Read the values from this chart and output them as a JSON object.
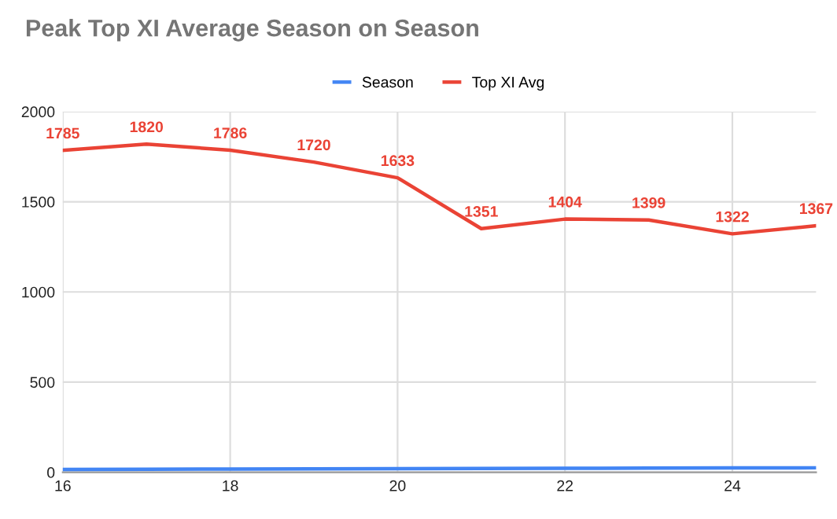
{
  "chart_data": {
    "type": "line",
    "title": "Peak Top XI Average Season on Season",
    "x": [
      16,
      17,
      18,
      19,
      20,
      21,
      22,
      23,
      24,
      25
    ],
    "series": [
      {
        "name": "Season",
        "color": "#4285f4",
        "values": [
          16,
          17,
          18,
          19,
          20,
          21,
          22,
          23,
          24,
          25
        ]
      },
      {
        "name": "Top XI Avg",
        "color": "#ea4335",
        "values": [
          1785,
          1820,
          1786,
          1720,
          1633,
          1351,
          1404,
          1399,
          1322,
          1367
        ],
        "value_labels": [
          "1785",
          "1820",
          "1786",
          "1720",
          "1633",
          "1351",
          "1404",
          "1399",
          "1322",
          "1367"
        ]
      }
    ],
    "xlim": [
      16,
      25
    ],
    "xticks": [
      16,
      18,
      20,
      22,
      24
    ],
    "ylim": [
      0,
      2000
    ],
    "yticks": [
      0,
      500,
      1000,
      1500,
      2000
    ],
    "grid": true,
    "legend": "top",
    "marker": "none",
    "line_style": "solid"
  }
}
